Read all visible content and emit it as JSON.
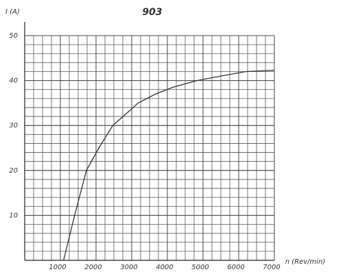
{
  "chart_data": {
    "type": "line",
    "title": "903",
    "y_label": "I (A)",
    "x_label": "n (Rev/min)",
    "x": [
      1090,
      1400,
      1730,
      2080,
      2470,
      2900,
      3180,
      3670,
      4150,
      4830,
      5500,
      6200,
      7000
    ],
    "series": [
      {
        "name": "I",
        "color": "#333333",
        "values": [
          0,
          10,
          20,
          25,
          30,
          33,
          35,
          37,
          38.5,
          40,
          41,
          42,
          42.3
        ]
      }
    ],
    "xlim": [
      0,
      7000
    ],
    "xticks": [
      1000,
      2000,
      3000,
      4000,
      5000,
      6000,
      7000
    ],
    "ylim": [
      0,
      50
    ],
    "yticks": [
      10,
      20,
      30,
      40,
      50
    ],
    "grid": true
  }
}
